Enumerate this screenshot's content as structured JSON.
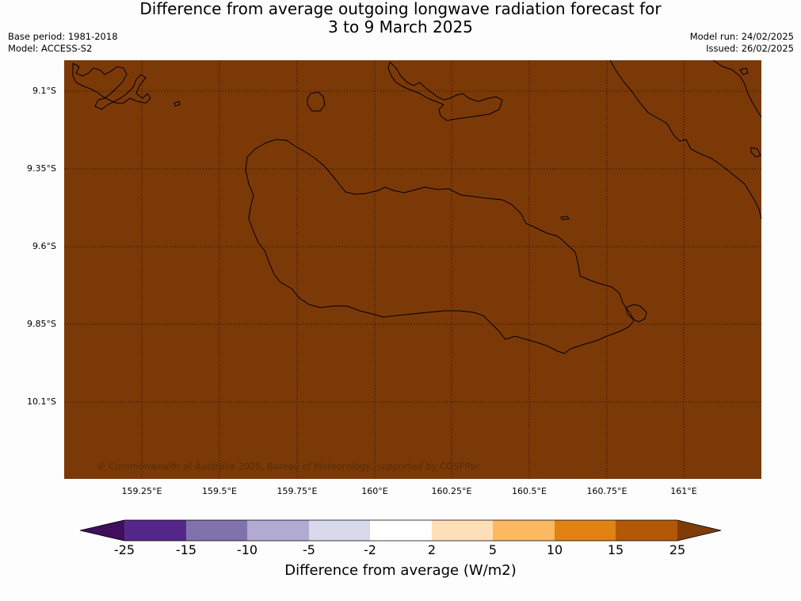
{
  "title_line1": "Difference from average outgoing longwave radiation forecast for",
  "title_line2": "3 to 9 March 2025",
  "base_period": "Base period: 1981-2018",
  "model": "Model: ACCESS-S2",
  "model_run": "Model run: 24/02/2025",
  "issued": "Issued: 26/02/2025",
  "map": {
    "fill_color": "#7b3908",
    "lat_labels": [
      "9.1°S",
      "9.35°S",
      "9.6°S",
      "9.85°S",
      "10.1°S"
    ],
    "lon_labels": [
      "159.25°E",
      "159.5°E",
      "159.75°E",
      "160°E",
      "160.25°E",
      "160.5°E",
      "160.75°E",
      "161°E"
    ],
    "copyright": "© Commonwealth of Australia 2025, Bureau of Meteorology, supported by COSPPac"
  },
  "colorbar": {
    "ticks": [
      "-25",
      "-15",
      "-10",
      "-5",
      "-2",
      "2",
      "5",
      "10",
      "15",
      "25"
    ],
    "colors": [
      "#3f0f5e",
      "#56278b",
      "#8073ad",
      "#b1aad2",
      "#d9d9ec",
      "#ffffff",
      "#ffdfb8",
      "#fdb862",
      "#e08214",
      "#b35806",
      "#7f3b08"
    ],
    "label": "Difference from average (W/m2)"
  }
}
